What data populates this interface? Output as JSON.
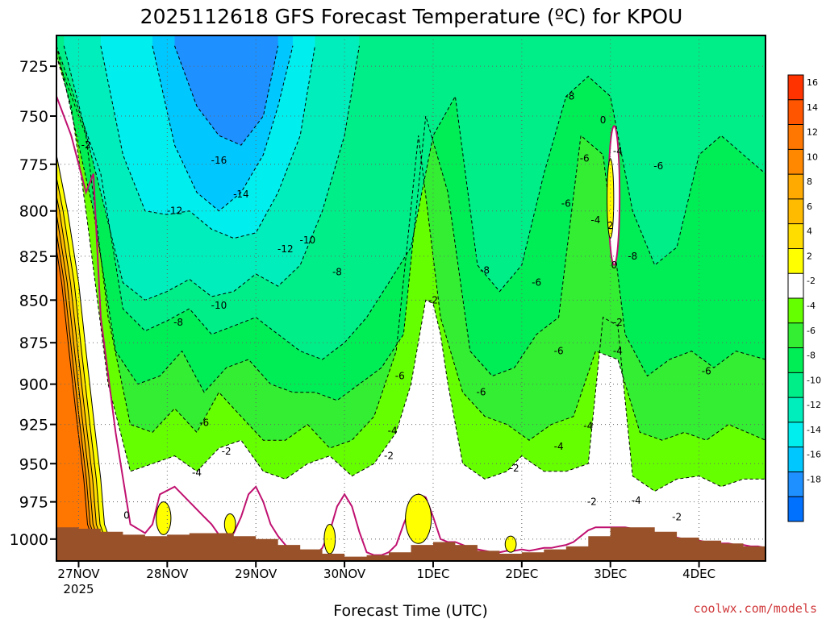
{
  "colors": {
    "ground": "#99512a",
    "grid": "#666666",
    "band_above_2": "#ffff00",
    "band_0_2": "#ffffff",
    "band_m2_0": "#ffffff",
    "band_m4_m2": "#66ff00",
    "band_m6_m4": "#33ee33",
    "band_m8_m6": "#00ee55",
    "band_m10_m8": "#00ee88",
    "band_m12_m10": "#00eebb",
    "band_m14_m12": "#00eeee",
    "band_m16_m14": "#00c8ff",
    "band_below_m16": "#1e90ff",
    "zero_line": "#c01070",
    "credit": "#d0393b"
  },
  "chart_data": {
    "type": "heatmap",
    "title": "2025112618 GFS Forecast Temperature (ºC) for KPOU",
    "xlabel": "Forecast Time (UTC)",
    "ylabel": "",
    "credit": "coolwx.com/models",
    "x_unit": "hours since 2025-11-27 00Z",
    "xlim": [
      -6,
      186
    ],
    "ylim": [
      1015,
      710
    ],
    "x_ticks": [
      {
        "value": 0,
        "label": "27NOV",
        "sub": "2025"
      },
      {
        "value": 24,
        "label": "28NOV",
        "sub": ""
      },
      {
        "value": 48,
        "label": "29NOV",
        "sub": ""
      },
      {
        "value": 72,
        "label": "30NOV",
        "sub": ""
      },
      {
        "value": 96,
        "label": "1DEC",
        "sub": ""
      },
      {
        "value": 120,
        "label": "2DEC",
        "sub": ""
      },
      {
        "value": 144,
        "label": "3DEC",
        "sub": ""
      },
      {
        "value": 168,
        "label": "4DEC",
        "sub": ""
      }
    ],
    "y_ticks": [
      725,
      750,
      775,
      800,
      825,
      850,
      875,
      900,
      925,
      950,
      975,
      1000
    ],
    "colorbar": {
      "levels": [
        16,
        14,
        12,
        10,
        8,
        6,
        4,
        2,
        -2,
        -4,
        -6,
        -8,
        -10,
        -12,
        -14,
        -16,
        -18
      ],
      "colors": [
        "#ff3300",
        "#ff5500",
        "#ff7700",
        "#ff8800",
        "#ffaa00",
        "#ffbb00",
        "#ffdd00",
        "#ffff00",
        "#ffffff",
        "#66ff00",
        "#33ee33",
        "#00ee55",
        "#00ee88",
        "#00eebb",
        "#00eeee",
        "#00c8ff",
        "#1e90ff",
        "#0070ff"
      ]
    },
    "surface_pressure": {
      "x": [
        -6,
        0,
        6,
        12,
        18,
        24,
        30,
        36,
        42,
        48,
        54,
        60,
        66,
        72,
        78,
        84,
        90,
        96,
        102,
        108,
        114,
        120,
        126,
        132,
        138,
        144,
        150,
        156,
        162,
        168,
        174,
        180,
        186
      ],
      "p": [
        992,
        993,
        995,
        997,
        998,
        997,
        996,
        996,
        998,
        1000,
        1004,
        1007,
        1010,
        1012,
        1011,
        1009,
        1004,
        1002,
        1004,
        1008,
        1010,
        1009,
        1007,
        1005,
        998,
        992,
        992,
        995,
        999,
        1001,
        1003,
        1005,
        1006
      ]
    },
    "isotherms": [
      {
        "level": -2,
        "x": [
          -6,
          -2,
          2,
          8,
          14,
          20,
          26,
          32,
          38,
          44,
          50,
          56,
          62,
          68,
          74,
          80,
          86,
          90,
          94,
          96,
          98,
          100,
          104,
          110,
          116,
          120,
          126,
          132,
          138,
          142,
          146,
          150,
          156,
          162,
          168,
          174,
          180,
          186
        ],
        "p": [
          720,
          745,
          800,
          900,
          955,
          950,
          945,
          955,
          940,
          935,
          955,
          960,
          950,
          945,
          958,
          950,
          930,
          900,
          850,
          852,
          870,
          900,
          950,
          960,
          955,
          945,
          955,
          955,
          950,
          860,
          865,
          958,
          968,
          960,
          958,
          965,
          960,
          960
        ]
      },
      {
        "level": -4,
        "x": [
          -6,
          2,
          8,
          14,
          20,
          26,
          32,
          38,
          44,
          50,
          56,
          62,
          68,
          74,
          80,
          86,
          92,
          98,
          104,
          110,
          116,
          122,
          128,
          134,
          140,
          146,
          152,
          158,
          164,
          170,
          176,
          186
        ],
        "p": [
          720,
          760,
          860,
          925,
          930,
          915,
          930,
          905,
          920,
          935,
          935,
          925,
          940,
          935,
          920,
          880,
          760,
          860,
          905,
          920,
          925,
          935,
          925,
          920,
          880,
          885,
          930,
          935,
          930,
          935,
          925,
          935
        ]
      },
      {
        "level": -6,
        "x": [
          -6,
          4,
          10,
          16,
          22,
          28,
          34,
          40,
          46,
          52,
          58,
          64,
          70,
          76,
          82,
          88,
          94,
          100,
          106,
          112,
          118,
          124,
          130,
          136,
          142,
          148,
          154,
          160,
          166,
          172,
          178,
          186
        ],
        "p": [
          715,
          800,
          880,
          900,
          895,
          880,
          905,
          890,
          885,
          900,
          905,
          905,
          910,
          900,
          890,
          870,
          750,
          790,
          880,
          895,
          890,
          870,
          860,
          760,
          770,
          870,
          895,
          885,
          880,
          890,
          880,
          885
        ]
      },
      {
        "level": -8,
        "x": [
          -6,
          6,
          12,
          18,
          24,
          30,
          36,
          42,
          48,
          54,
          60,
          66,
          72,
          78,
          84,
          90,
          96,
          102,
          108,
          114,
          120,
          126,
          132,
          138,
          144,
          150,
          156,
          162,
          168,
          174,
          180,
          186
        ],
        "p": [
          715,
          780,
          855,
          868,
          862,
          855,
          870,
          865,
          860,
          870,
          880,
          885,
          875,
          860,
          840,
          820,
          760,
          740,
          830,
          845,
          830,
          780,
          740,
          730,
          740,
          800,
          830,
          820,
          770,
          760,
          770,
          780
        ]
      },
      {
        "level": -10,
        "x": [
          -4,
          6,
          12,
          18,
          24,
          30,
          36,
          42,
          48,
          54,
          60,
          66,
          72,
          76
        ],
        "p": [
          715,
          790,
          840,
          850,
          845,
          838,
          848,
          845,
          835,
          842,
          830,
          800,
          760,
          715
        ]
      },
      {
        "level": -12,
        "x": [
          6,
          12,
          18,
          24,
          30,
          36,
          42,
          48,
          54,
          60,
          64
        ],
        "p": [
          715,
          770,
          800,
          802,
          800,
          810,
          815,
          812,
          790,
          760,
          715
        ]
      },
      {
        "level": -14,
        "x": [
          20,
          26,
          32,
          38,
          44,
          50,
          54,
          58
        ],
        "p": [
          715,
          765,
          790,
          800,
          790,
          770,
          745,
          715
        ]
      },
      {
        "level": -16,
        "x": [
          26,
          32,
          38,
          44,
          50,
          54
        ],
        "p": [
          715,
          745,
          760,
          765,
          750,
          715
        ]
      },
      {
        "level": 0,
        "x": [
          -6,
          -2,
          2,
          4,
          6,
          10,
          14,
          18,
          20,
          22,
          26,
          30,
          34,
          36,
          38,
          42,
          44,
          46,
          48,
          50,
          52,
          54,
          56,
          58,
          60,
          62,
          64,
          66,
          68,
          70,
          72,
          74,
          76,
          78,
          80,
          82,
          84,
          86,
          88,
          90,
          92,
          94,
          96,
          98,
          100,
          102,
          104,
          106,
          108,
          110,
          112,
          114,
          116,
          118,
          120,
          122,
          124,
          126,
          128,
          130,
          132,
          134,
          136,
          138,
          140,
          142,
          144,
          146,
          148,
          150,
          152,
          154,
          156,
          158,
          160,
          162,
          164,
          166,
          168,
          170,
          172,
          174,
          176,
          178,
          180,
          182,
          184,
          186
        ],
        "p": [
          740,
          760,
          790,
          780,
          860,
          930,
          990,
          996,
          990,
          970,
          965,
          975,
          985,
          990,
          997,
          996,
          985,
          970,
          965,
          975,
          990,
          998,
          1004,
          1008,
          1010,
          1011,
          1011,
          1006,
          995,
          978,
          970,
          978,
          995,
          1009,
          1011,
          1011,
          1009,
          1004,
          990,
          978,
          970,
          972,
          985,
          1000,
          1002,
          1002,
          1004,
          1006,
          1007,
          1008,
          1009,
          1009,
          1008,
          1008,
          1007,
          1008,
          1007,
          1006,
          1006,
          1005,
          1004,
          1002,
          998,
          994,
          992,
          992,
          992,
          992,
          992,
          993,
          994,
          995,
          996,
          997,
          998,
          999,
          1000,
          1001,
          1001,
          1002,
          1002,
          1003,
          1003,
          1004,
          1004,
          1005,
          1005,
          1006
        ]
      }
    ],
    "pockets": [
      {
        "kind": "warm",
        "label": "0",
        "x_center": 145,
        "p_top": 755,
        "p_bottom": 830,
        "x_half": 1.5
      },
      {
        "kind": "yellow",
        "label": "2",
        "x_center": 144,
        "p_top": 772,
        "p_bottom": 815,
        "x_half": 0.9
      },
      {
        "kind": "yellow",
        "label": "",
        "x_center": 92,
        "p_top": 970,
        "p_bottom": 1003,
        "x_half": 3.5
      },
      {
        "kind": "yellow",
        "label": "",
        "x_center": 23,
        "p_top": 975,
        "p_bottom": 997,
        "x_half": 2.0
      },
      {
        "kind": "yellow",
        "label": "",
        "x_center": 41,
        "p_top": 983,
        "p_bottom": 997,
        "x_half": 1.5
      },
      {
        "kind": "yellow",
        "label": "",
        "x_center": 68,
        "p_top": 990,
        "p_bottom": 1010,
        "x_half": 1.5
      },
      {
        "kind": "yellow",
        "label": "",
        "x_center": 117,
        "p_top": 998,
        "p_bottom": 1009,
        "x_half": 1.5
      }
    ],
    "warm_left_edge": {
      "x": [
        -6,
        -3,
        0,
        2,
        4,
        6,
        7,
        8
      ],
      "p": [
        770,
        800,
        840,
        880,
        920,
        960,
        990,
        997
      ],
      "bands": [
        {
          "min": 2,
          "max": 4,
          "offset_hours": 0
        },
        {
          "min": 4,
          "max": 6,
          "offset_hours": -1.2
        },
        {
          "min": 6,
          "max": 8,
          "offset_hours": -2.2
        },
        {
          "min": 8,
          "max": 10,
          "offset_hours": -3.1
        },
        {
          "min": 10,
          "max": 12,
          "offset_hours": -3.9
        },
        {
          "min": 12,
          "max": 14,
          "offset_hours": -4.6
        }
      ]
    },
    "contour_labels": [
      {
        "text": "-2",
        "x": 2,
        "p": 765
      },
      {
        "text": "-16",
        "x": 38,
        "p": 773
      },
      {
        "text": "-14",
        "x": 44,
        "p": 791
      },
      {
        "text": "-12",
        "x": 26,
        "p": 800
      },
      {
        "text": "-12",
        "x": 56,
        "p": 821
      },
      {
        "text": "-10",
        "x": 62,
        "p": 816
      },
      {
        "text": "-10",
        "x": 38,
        "p": 853
      },
      {
        "text": "-8",
        "x": 27,
        "p": 863
      },
      {
        "text": "-8",
        "x": 70,
        "p": 834
      },
      {
        "text": "-8",
        "x": 110,
        "p": 833
      },
      {
        "text": "-8",
        "x": 150,
        "p": 825
      },
      {
        "text": "-8",
        "x": 133,
        "p": 740
      },
      {
        "text": "-6",
        "x": 124,
        "p": 840
      },
      {
        "text": "-6",
        "x": 109,
        "p": 905
      },
      {
        "text": "-6",
        "x": 87,
        "p": 895
      },
      {
        "text": "-6",
        "x": 34,
        "p": 924
      },
      {
        "text": "-6",
        "x": 130,
        "p": 880
      },
      {
        "text": "-6",
        "x": 170,
        "p": 892
      },
      {
        "text": "-6",
        "x": 132,
        "p": 796
      },
      {
        "text": "-6",
        "x": 137,
        "p": 772
      },
      {
        "text": "-6",
        "x": 157,
        "p": 776
      },
      {
        "text": "-4",
        "x": 146,
        "p": 768
      },
      {
        "text": "-4",
        "x": 140,
        "p": 805
      },
      {
        "text": "-4",
        "x": 146,
        "p": 880
      },
      {
        "text": "-4",
        "x": 138,
        "p": 926
      },
      {
        "text": "-4",
        "x": 85,
        "p": 929
      },
      {
        "text": "-4",
        "x": 32,
        "p": 956
      },
      {
        "text": "-4",
        "x": 130,
        "p": 939
      },
      {
        "text": "-4",
        "x": 151,
        "p": 974
      },
      {
        "text": "-2",
        "x": 40,
        "p": 942
      },
      {
        "text": "-2",
        "x": 84,
        "p": 945
      },
      {
        "text": "-2",
        "x": 118,
        "p": 953
      },
      {
        "text": "-2",
        "x": 146,
        "p": 863
      },
      {
        "text": "-2",
        "x": 96,
        "p": 850
      },
      {
        "text": "-2",
        "x": 139,
        "p": 975
      },
      {
        "text": "-2",
        "x": 162,
        "p": 985
      },
      {
        "text": "0",
        "x": 13,
        "p": 984
      },
      {
        "text": "0",
        "x": 142,
        "p": 752
      },
      {
        "text": "0",
        "x": 145,
        "p": 830
      },
      {
        "text": "2",
        "x": 144,
        "p": 808
      }
    ]
  }
}
